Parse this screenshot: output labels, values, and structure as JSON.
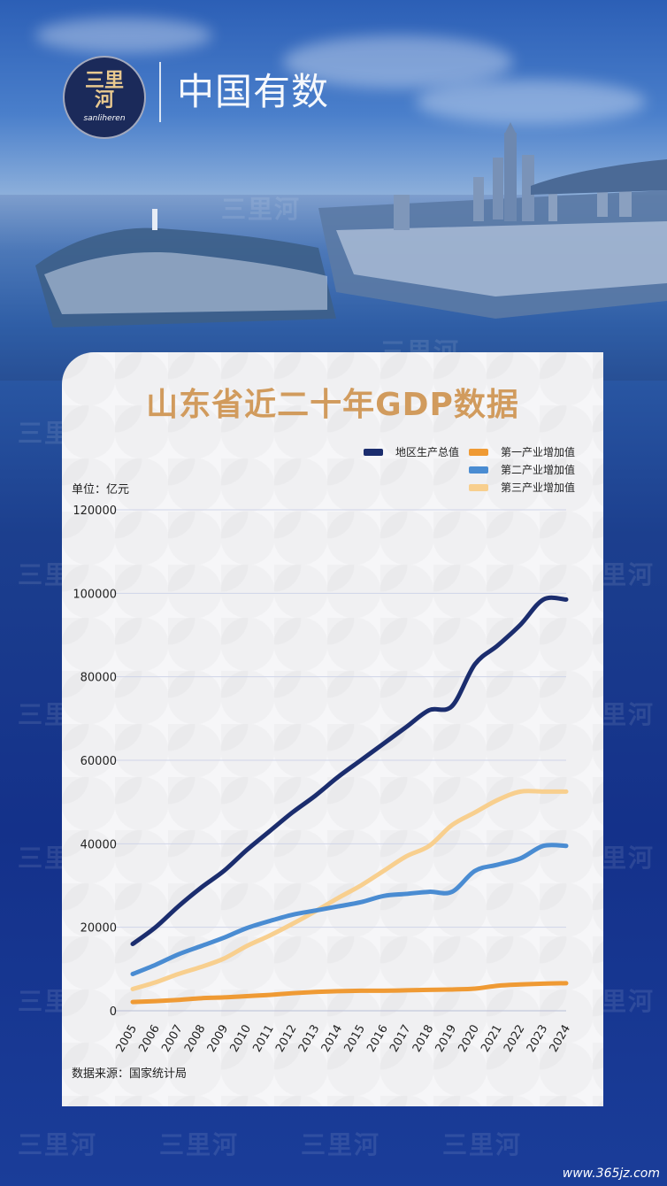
{
  "brand": {
    "logo_text": "三里河",
    "logo_subtext": "sanliheren",
    "header_text": "中国有数",
    "watermark": "三里河",
    "site_watermark": "www.365jz.com"
  },
  "colors": {
    "gdp": "#1b2d6e",
    "primary": "#ef9a34",
    "secondary": "#4a8cd2",
    "tertiary": "#f8cf8e",
    "title": "#d19b5d",
    "grid": "#cfd4e8"
  },
  "chart_data": {
    "type": "line",
    "title": "山东省近二十年GDP数据",
    "unit_label": "单位：亿元",
    "source": "数据来源：国家统计局",
    "x": [
      "2005",
      "2006",
      "2007",
      "2008",
      "2009",
      "2010",
      "2011",
      "2012",
      "2013",
      "2014",
      "2015",
      "2016",
      "2017",
      "2018",
      "2019",
      "2020",
      "2021",
      "2022",
      "2023",
      "2024"
    ],
    "ylim": [
      0,
      120000
    ],
    "yticks": [
      "0",
      "20000",
      "40000",
      "60000",
      "80000",
      "100000",
      "120000"
    ],
    "legend_placement": "top-right",
    "grid": true,
    "series": [
      {
        "name": "地区生产总值",
        "color": "#1b2d6e",
        "values": [
          16000,
          20000,
          25000,
          29500,
          33500,
          38500,
          43000,
          47500,
          51500,
          56000,
          60000,
          64000,
          68000,
          72000,
          73000,
          83000,
          87500,
          92500,
          98500,
          98500
        ]
      },
      {
        "name": "第一产业增加值",
        "color": "#ef9a34",
        "values": [
          2100,
          2300,
          2600,
          3000,
          3200,
          3500,
          3800,
          4200,
          4500,
          4700,
          4800,
          4800,
          4900,
          5000,
          5100,
          5300,
          6000,
          6300,
          6500,
          6600
        ]
      },
      {
        "name": "第二产业增加值",
        "color": "#4a8cd2",
        "values": [
          8800,
          11000,
          13500,
          15500,
          17500,
          19800,
          21500,
          23000,
          24000,
          25000,
          26000,
          27500,
          28000,
          28500,
          28500,
          33500,
          35000,
          36500,
          39500,
          39500
        ]
      },
      {
        "name": "第三产业增加值",
        "color": "#f8cf8e",
        "values": [
          5200,
          6800,
          8800,
          10500,
          12500,
          15500,
          18000,
          20800,
          23800,
          27000,
          30000,
          33500,
          37000,
          39500,
          44500,
          47500,
          50500,
          52500,
          52500,
          52500
        ]
      }
    ]
  }
}
